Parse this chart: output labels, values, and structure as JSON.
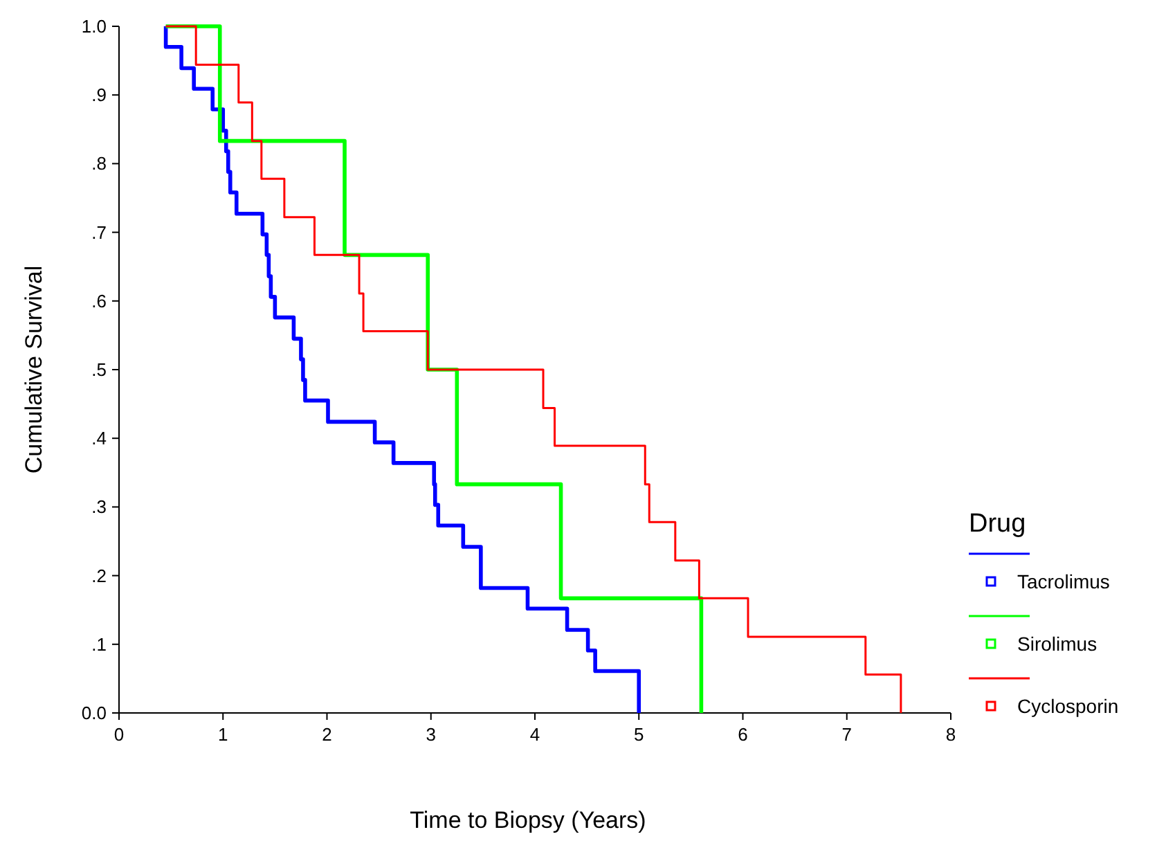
{
  "chart_data": {
    "type": "step",
    "xlabel": "Time to Biopsy (Years)",
    "ylabel": "Cumulative Survival",
    "legend_title": "Drug",
    "legend": "right",
    "xlim": [
      0,
      8
    ],
    "ylim": [
      0,
      1
    ],
    "xticks": [
      0,
      1,
      2,
      3,
      4,
      5,
      6,
      7,
      8
    ],
    "yticks": [
      {
        "value": 0,
        "label": "0.0"
      },
      {
        "value": 0.1,
        "label": ".1"
      },
      {
        "value": 0.2,
        "label": ".2"
      },
      {
        "value": 0.3,
        "label": ".3"
      },
      {
        "value": 0.4,
        "label": ".4"
      },
      {
        "value": 0.5,
        "label": ".5"
      },
      {
        "value": 0.6,
        "label": ".6"
      },
      {
        "value": 0.7,
        "label": ".7"
      },
      {
        "value": 0.8,
        "label": ".8"
      },
      {
        "value": 0.9,
        "label": ".9"
      },
      {
        "value": 1,
        "label": "1.0"
      }
    ],
    "series": [
      {
        "name": "Tacrolimus",
        "color": "#0000ff",
        "x": [
          0.45,
          0.45,
          0.6,
          0.72,
          0.9,
          1.0,
          1.03,
          1.05,
          1.07,
          1.13,
          1.38,
          1.42,
          1.44,
          1.46,
          1.5,
          1.68,
          1.75,
          1.77,
          1.79,
          2.01,
          2.46,
          2.64,
          3.03,
          3.04,
          3.07,
          3.31,
          3.48,
          3.93,
          4.31,
          4.51,
          4.58,
          5.0
        ],
        "values": [
          1,
          0.97,
          0.939,
          0.909,
          0.879,
          0.848,
          0.818,
          0.788,
          0.758,
          0.727,
          0.697,
          0.667,
          0.636,
          0.606,
          0.576,
          0.545,
          0.515,
          0.485,
          0.455,
          0.424,
          0.394,
          0.364,
          0.333,
          0.303,
          0.273,
          0.242,
          0.182,
          0.152,
          0.121,
          0.091,
          0.061,
          0
        ]
      },
      {
        "name": "Sirolimus",
        "color": "#00ff00",
        "x": [
          0.45,
          0.97,
          2.17,
          2.97,
          3.25,
          4.25,
          5.6
        ],
        "values": [
          1,
          0.833,
          0.667,
          0.5,
          0.333,
          0.167,
          0
        ]
      },
      {
        "name": "Cyclosporin",
        "color": "#ff0000",
        "x": [
          0.45,
          0.74,
          1.15,
          1.28,
          1.37,
          1.59,
          1.88,
          2.31,
          2.35,
          2.97,
          4.08,
          4.19,
          5.06,
          5.1,
          5.35,
          5.58,
          6.05,
          7.18,
          7.52
        ],
        "values": [
          1,
          0.944,
          0.889,
          0.833,
          0.778,
          0.722,
          0.667,
          0.611,
          0.556,
          0.5,
          0.444,
          0.389,
          0.333,
          0.278,
          0.222,
          0.167,
          0.111,
          0.056,
          0
        ]
      }
    ]
  }
}
